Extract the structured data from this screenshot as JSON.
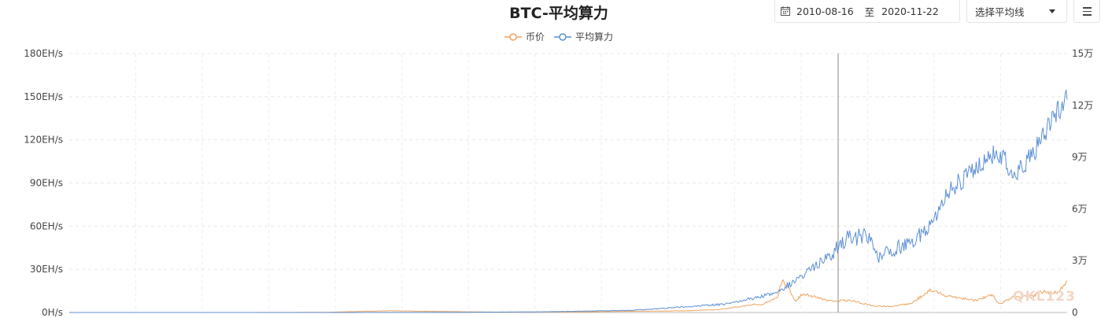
{
  "header": {
    "title": "BTC-平均算力",
    "date_start": "2010-08-16",
    "date_sep": "至",
    "date_end": "2020-11-22",
    "ma_select": "选择平均线",
    "icons": {
      "calendar": "calendar-icon",
      "menu": "menu-icon",
      "caret": "chevron-down-icon"
    }
  },
  "watermark": "QKL123",
  "chart_data": {
    "type": "line",
    "title": "BTC-平均算力",
    "legend_position": "top-center",
    "grid": true,
    "x": {
      "type": "date",
      "range": [
        "2010-08-16",
        "2020-11-22"
      ]
    },
    "y_left": {
      "ticks": [
        "0H/s",
        "30EH/s",
        "60EH/s",
        "90EH/s",
        "120EH/s",
        "150EH/s",
        "180EH/s"
      ],
      "range": [
        0,
        180
      ],
      "unit": "EH/s"
    },
    "y_right": {
      "ticks": [
        "0",
        "3万",
        "6万",
        "9万",
        "12万",
        "15万"
      ],
      "range": [
        0,
        150000
      ]
    },
    "series": [
      {
        "name": "币价",
        "color": "#f0a35e",
        "axis": "right",
        "values": [
          [
            "2010-08-16",
            0.1
          ],
          [
            "2011-06-01",
            15
          ],
          [
            "2012-06-01",
            6
          ],
          [
            "2013-04-01",
            100
          ],
          [
            "2013-12-01",
            1000
          ],
          [
            "2014-06-01",
            600
          ],
          [
            "2015-01-15",
            200
          ],
          [
            "2015-11-01",
            350
          ],
          [
            "2016-06-15",
            700
          ],
          [
            "2017-01-01",
            1000
          ],
          [
            "2017-05-01",
            1800
          ],
          [
            "2017-09-01",
            4500
          ],
          [
            "2017-10-01",
            4500
          ],
          [
            "2017-12-01",
            9000
          ],
          [
            "2017-12-17",
            19500
          ],
          [
            "2018-02-06",
            7000
          ],
          [
            "2018-03-05",
            11000
          ],
          [
            "2018-06-15",
            6500
          ],
          [
            "2018-09-01",
            7000
          ],
          [
            "2018-11-25",
            3800
          ],
          [
            "2019-02-01",
            3400
          ],
          [
            "2019-04-15",
            5200
          ],
          [
            "2019-06-26",
            12900
          ],
          [
            "2019-09-01",
            9600
          ],
          [
            "2019-12-15",
            7000
          ],
          [
            "2020-02-13",
            10300
          ],
          [
            "2020-03-13",
            4900
          ],
          [
            "2020-05-01",
            8800
          ],
          [
            "2020-07-15",
            9200
          ],
          [
            "2020-08-17",
            12200
          ],
          [
            "2020-10-15",
            11500
          ],
          [
            "2020-11-22",
            18500
          ]
        ]
      },
      {
        "name": "平均算力",
        "color": "#5b8fd6",
        "axis": "left",
        "values": [
          [
            "2010-08-16",
            0
          ],
          [
            "2013-06-01",
            0.0001
          ],
          [
            "2014-06-01",
            0.1
          ],
          [
            "2015-06-01",
            0.4
          ],
          [
            "2016-06-01",
            1.5
          ],
          [
            "2017-06-01",
            6
          ],
          [
            "2017-12-01",
            14
          ],
          [
            "2018-03-01",
            26
          ],
          [
            "2018-06-01",
            38
          ],
          [
            "2018-08-31",
            53
          ],
          [
            "2018-11-01",
            52
          ],
          [
            "2018-12-15",
            38
          ],
          [
            "2019-02-01",
            43
          ],
          [
            "2019-05-01",
            50
          ],
          [
            "2019-07-01",
            65
          ],
          [
            "2019-09-01",
            83
          ],
          [
            "2019-12-01",
            97
          ],
          [
            "2020-03-01",
            112
          ],
          [
            "2020-05-15",
            95
          ],
          [
            "2020-08-01",
            115
          ],
          [
            "2020-10-15",
            140
          ],
          [
            "2020-11-22",
            148
          ]
        ]
      }
    ]
  }
}
